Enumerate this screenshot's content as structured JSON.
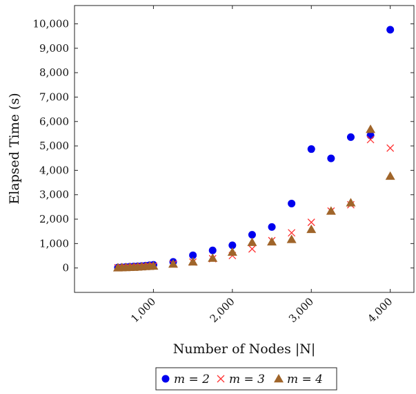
{
  "chart_data": {
    "type": "scatter",
    "xlabel": "Number of Nodes |N|",
    "ylabel": "Elapsed Time (s)",
    "xlim": [
      0,
      4300
    ],
    "ylim": [
      -1000,
      10750
    ],
    "xticks": [
      1000,
      2000,
      3000,
      4000
    ],
    "xtick_labels": [
      "1,000",
      "2,000",
      "3,000",
      "4,000"
    ],
    "yticks": [
      0,
      1000,
      2000,
      3000,
      4000,
      5000,
      6000,
      7000,
      8000,
      9000,
      10000
    ],
    "ytick_labels": [
      "0",
      "1,000",
      "2,000",
      "3,000",
      "4,000",
      "5,000",
      "6,000",
      "7,000",
      "8,000",
      "9,000",
      "10,000"
    ],
    "grid": false,
    "legend_position": "bottom-center",
    "series": [
      {
        "name": "m = 2",
        "marker": "circle",
        "color": "#0000ee",
        "x": [
          550,
          600,
          650,
          700,
          750,
          800,
          850,
          900,
          950,
          1000,
          1250,
          1500,
          1750,
          2000,
          2250,
          2500,
          2750,
          3000,
          3250,
          3500,
          3750,
          4000
        ],
        "y": [
          20,
          30,
          40,
          50,
          60,
          70,
          80,
          95,
          110,
          130,
          250,
          520,
          720,
          930,
          1360,
          1680,
          2640,
          4870,
          4490,
          5360,
          5430,
          9760
        ]
      },
      {
        "name": "m = 3",
        "marker": "cross",
        "color": "#ff3333",
        "x": [
          550,
          600,
          650,
          700,
          750,
          800,
          850,
          900,
          950,
          1000,
          1250,
          1500,
          1750,
          2000,
          2250,
          2500,
          2750,
          3000,
          3250,
          3500,
          3750,
          4000
        ],
        "y": [
          10,
          15,
          20,
          25,
          30,
          40,
          50,
          60,
          70,
          80,
          160,
          240,
          380,
          510,
          780,
          1120,
          1440,
          1870,
          2330,
          2590,
          5260,
          4910
        ]
      },
      {
        "name": "m = 4",
        "marker": "triangle",
        "color": "#a0652a",
        "x": [
          550,
          600,
          650,
          700,
          750,
          800,
          850,
          900,
          950,
          1000,
          1250,
          1500,
          1750,
          2000,
          2250,
          2500,
          2750,
          3000,
          3250,
          3500,
          3750,
          4000
        ],
        "y": [
          10,
          15,
          20,
          25,
          30,
          40,
          50,
          60,
          70,
          80,
          160,
          250,
          400,
          650,
          1050,
          1070,
          1170,
          1580,
          2330,
          2670,
          5680,
          3760
        ]
      }
    ]
  }
}
